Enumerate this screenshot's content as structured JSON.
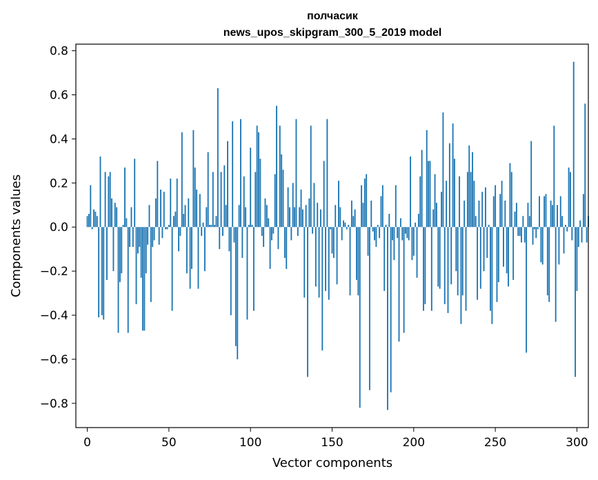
{
  "chart_data": {
    "type": "bar",
    "title": "полчасик",
    "subtitle": "news_upos_skipgram_300_5_2019 model",
    "xlabel": "Vector components",
    "ylabel": "Components values",
    "xlim": [
      -7,
      307
    ],
    "ylim": [
      -0.91,
      0.83
    ],
    "x_ticks": [
      0,
      50,
      100,
      150,
      200,
      250,
      300
    ],
    "y_ticks": [
      0.8,
      0.6,
      0.4,
      0.2,
      0.0,
      -0.2,
      -0.4,
      -0.6,
      -0.8
    ],
    "x_tick_labels": [
      "0",
      "50",
      "100",
      "150",
      "200",
      "250",
      "300"
    ],
    "y_tick_labels": [
      "0.8",
      "0.6",
      "0.4",
      "0.2",
      "0.0",
      "−0.2",
      "−0.4",
      "−0.6",
      "−0.8"
    ],
    "grid": false,
    "bar_color": "#1f77b4",
    "values": [
      0.05,
      0.06,
      0.19,
      -0.01,
      0.08,
      0.07,
      0.05,
      -0.41,
      0.32,
      -0.4,
      -0.42,
      0.25,
      -0.24,
      0.23,
      0.25,
      0.13,
      -0.2,
      0.11,
      0.09,
      -0.48,
      -0.25,
      -0.21,
      0.01,
      0.27,
      0.04,
      -0.48,
      -0.09,
      0.09,
      -0.09,
      0.31,
      -0.35,
      -0.12,
      -0.09,
      -0.23,
      -0.47,
      -0.47,
      -0.21,
      -0.08,
      0.1,
      -0.34,
      -0.09,
      -0.06,
      0.13,
      0.3,
      -0.08,
      0.17,
      -0.05,
      0.16,
      -0.01,
      -0.01,
      0.01,
      0.22,
      -0.38,
      0.05,
      0.07,
      0.22,
      -0.11,
      -0.04,
      0.43,
      0.06,
      0.1,
      -0.21,
      0.13,
      -0.28,
      -0.19,
      0.44,
      0.27,
      0.17,
      -0.28,
      0.15,
      -0.04,
      0.02,
      -0.2,
      0.09,
      0.34,
      0.01,
      0.01,
      0.25,
      0.01,
      0.05,
      0.63,
      -0.1,
      0.25,
      -0.04,
      0.28,
      0.1,
      0.39,
      -0.11,
      -0.4,
      0.48,
      -0.07,
      -0.54,
      -0.6,
      0.1,
      0.49,
      -0.14,
      0.23,
      0.09,
      -0.42,
      0.01,
      0.36,
      0.01,
      -0.38,
      0.25,
      0.46,
      0.43,
      0.31,
      -0.04,
      -0.09,
      0.13,
      0.1,
      0.04,
      -0.19,
      -0.06,
      -0.03,
      0.24,
      0.55,
      -0.1,
      0.46,
      0.33,
      0.26,
      -0.14,
      -0.19,
      0.18,
      0.09,
      -0.06,
      0.2,
      0.09,
      0.49,
      -0.04,
      0.09,
      0.17,
      0.08,
      -0.32,
      0.1,
      -0.68,
      0.13,
      0.46,
      -0.03,
      0.2,
      -0.27,
      0.11,
      -0.32,
      0.08,
      -0.56,
      0.3,
      -0.29,
      0.49,
      -0.33,
      -0.01,
      -0.12,
      -0.14,
      0.1,
      -0.26,
      0.21,
      0.09,
      -0.06,
      0.03,
      0.02,
      -0.01,
      0.01,
      -0.31,
      0.12,
      0.05,
      0.08,
      -0.24,
      -0.31,
      -0.82,
      0.19,
      0.11,
      0.22,
      0.24,
      -0.13,
      -0.74,
      0.12,
      -0.02,
      -0.06,
      -0.09,
      0.01,
      -0.05,
      0.14,
      0.19,
      -0.29,
      0.01,
      -0.83,
      0.06,
      -0.75,
      -0.06,
      -0.15,
      0.19,
      -0.05,
      -0.52,
      0.04,
      -0.06,
      -0.48,
      -0.03,
      -0.05,
      -0.06,
      0.32,
      -0.15,
      -0.13,
      0.02,
      -0.23,
      0.06,
      0.23,
      0.35,
      -0.38,
      -0.35,
      0.44,
      0.3,
      0.3,
      -0.38,
      0.08,
      0.24,
      0.11,
      -0.27,
      -0.28,
      0.16,
      0.52,
      -0.35,
      0.21,
      -0.39,
      0.38,
      -0.26,
      0.47,
      0.31,
      -0.2,
      -0.31,
      0.23,
      -0.44,
      -0.31,
      0.12,
      -0.38,
      0.25,
      0.37,
      0.25,
      0.34,
      0.21,
      0.05,
      -0.33,
      0.12,
      -0.28,
      0.16,
      -0.2,
      0.18,
      -0.14,
      0.01,
      -0.38,
      -0.44,
      0.14,
      0.19,
      -0.34,
      -0.25,
      0.15,
      0.21,
      -0.18,
      0.12,
      -0.21,
      -0.27,
      0.29,
      0.25,
      -0.24,
      0.07,
      0.11,
      -0.04,
      -0.04,
      -0.07,
      0.05,
      -0.07,
      -0.57,
      0.11,
      0.05,
      0.39,
      -0.08,
      -0.01,
      -0.05,
      -0.01,
      0.14,
      -0.16,
      -0.17,
      0.14,
      0.15,
      -0.31,
      -0.34,
      0.12,
      0.1,
      0.46,
      -0.43,
      0.1,
      -0.17,
      0.14,
      0.05,
      -0.12,
      0.01,
      -0.02,
      0.27,
      0.25,
      -0.06,
      0.75,
      -0.68,
      -0.29,
      -0.09,
      0.03,
      -0.07,
      0.15,
      0.56,
      -0.07,
      0.05
    ]
  }
}
